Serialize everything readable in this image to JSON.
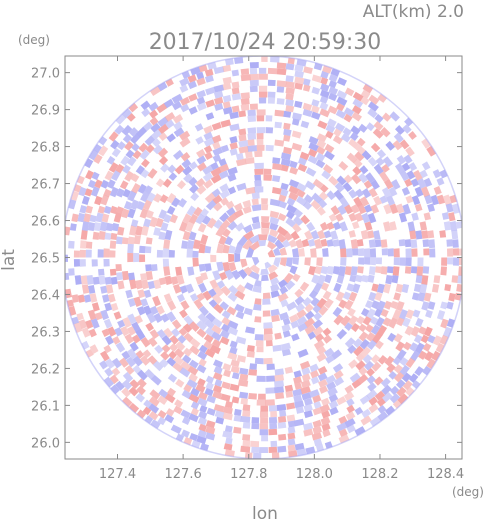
{
  "chart_data": {
    "type": "heatmap",
    "subtitle": "ALT(km) 2.0",
    "title": "2017/10/24 20:59:30",
    "xlabel": "lon",
    "ylabel": "lat",
    "xunit": "(deg)",
    "yunit": "(deg)",
    "xlim": [
      127.24,
      128.45
    ],
    "ylim": [
      25.955,
      27.045
    ],
    "x_ticks": [
      127.4,
      127.6,
      127.8,
      128.0,
      128.2,
      128.4
    ],
    "x_tick_labels": [
      "127.4",
      "127.6",
      "127.8",
      "128.0",
      "128.2",
      "128.4"
    ],
    "y_ticks": [
      26.0,
      26.1,
      26.2,
      26.3,
      26.4,
      26.5,
      26.6,
      26.7,
      26.8,
      26.9,
      27.0
    ],
    "y_tick_labels": [
      "26.0",
      "26.1",
      "26.2",
      "26.3",
      "26.4",
      "26.5",
      "26.6",
      "26.7",
      "26.8",
      "26.9",
      "27.0"
    ],
    "radar_center": {
      "lon": 127.845,
      "lat": 26.5
    },
    "radar_range_lat": 0.545,
    "grid": false,
    "colors": {
      "positive": "#f4a0a0",
      "negative": "#a8a8f4",
      "neutral": "#ffffff",
      "axis": "#8a8a8a"
    }
  }
}
